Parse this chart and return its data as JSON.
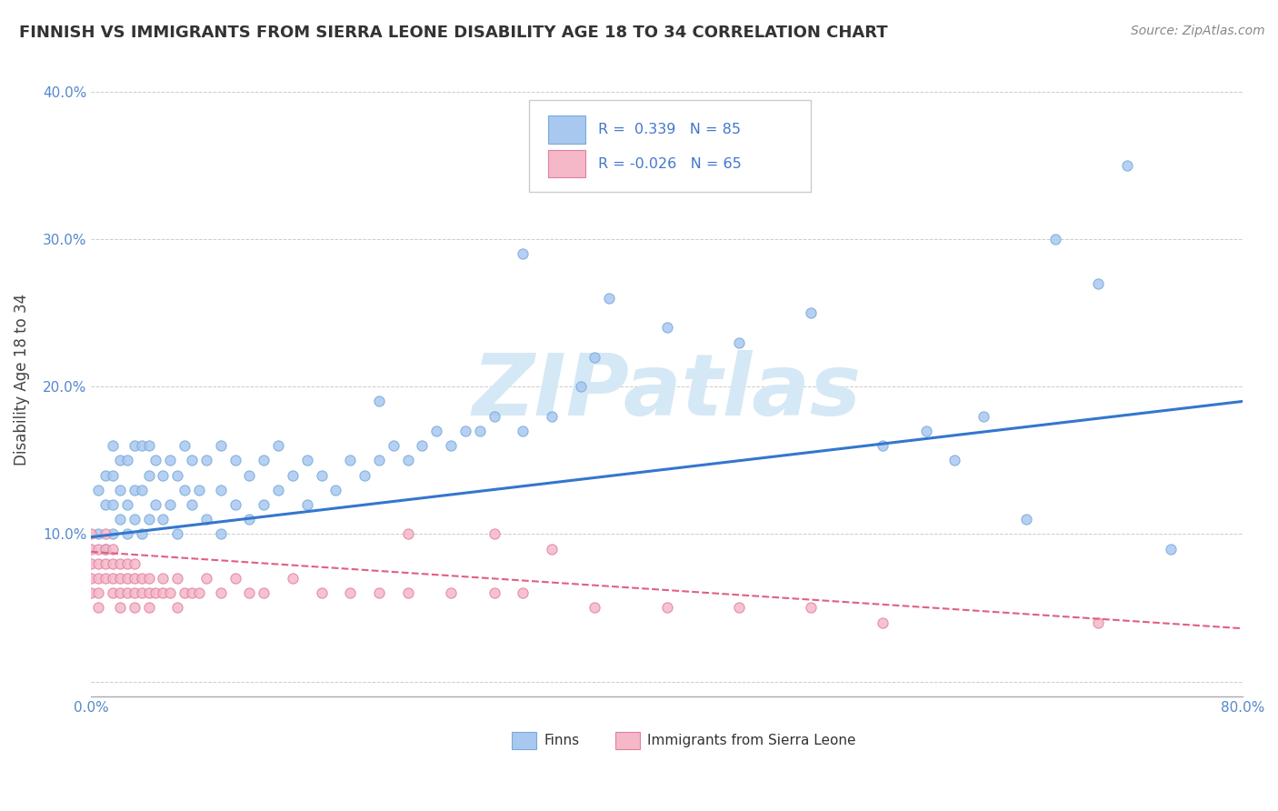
{
  "title": "FINNISH VS IMMIGRANTS FROM SIERRA LEONE DISABILITY AGE 18 TO 34 CORRELATION CHART",
  "source": "Source: ZipAtlas.com",
  "ylabel": "Disability Age 18 to 34",
  "xlim": [
    0.0,
    0.8
  ],
  "ylim": [
    -0.01,
    0.42
  ],
  "finn_color": "#a8c8f0",
  "finn_edge_color": "#7aaad8",
  "sierra_color": "#f5b8c8",
  "sierra_edge_color": "#e080a0",
  "finn_line_color": "#3377cc",
  "sierra_line_color": "#e06080",
  "watermark_color": "#d5e8f5",
  "background_color": "#ffffff",
  "legend_text_color": "#4477cc",
  "finn_scatter_x": [
    0.005,
    0.005,
    0.01,
    0.01,
    0.01,
    0.015,
    0.015,
    0.015,
    0.015,
    0.02,
    0.02,
    0.02,
    0.025,
    0.025,
    0.025,
    0.03,
    0.03,
    0.03,
    0.035,
    0.035,
    0.035,
    0.04,
    0.04,
    0.04,
    0.045,
    0.045,
    0.05,
    0.05,
    0.055,
    0.055,
    0.06,
    0.06,
    0.065,
    0.065,
    0.07,
    0.07,
    0.075,
    0.08,
    0.08,
    0.09,
    0.09,
    0.09,
    0.1,
    0.1,
    0.11,
    0.11,
    0.12,
    0.12,
    0.13,
    0.13,
    0.14,
    0.15,
    0.15,
    0.16,
    0.17,
    0.18,
    0.19,
    0.2,
    0.21,
    0.22,
    0.23,
    0.24,
    0.25,
    0.26,
    0.27,
    0.28,
    0.3,
    0.32,
    0.34,
    0.36,
    0.4,
    0.45,
    0.5,
    0.55,
    0.58,
    0.6,
    0.62,
    0.65,
    0.67,
    0.7,
    0.72,
    0.75,
    0.3,
    0.2,
    0.35
  ],
  "finn_scatter_y": [
    0.1,
    0.13,
    0.09,
    0.12,
    0.14,
    0.1,
    0.12,
    0.14,
    0.16,
    0.11,
    0.13,
    0.15,
    0.1,
    0.12,
    0.15,
    0.11,
    0.13,
    0.16,
    0.1,
    0.13,
    0.16,
    0.11,
    0.14,
    0.16,
    0.12,
    0.15,
    0.11,
    0.14,
    0.12,
    0.15,
    0.1,
    0.14,
    0.13,
    0.16,
    0.12,
    0.15,
    0.13,
    0.11,
    0.15,
    0.1,
    0.13,
    0.16,
    0.12,
    0.15,
    0.11,
    0.14,
    0.12,
    0.15,
    0.13,
    0.16,
    0.14,
    0.12,
    0.15,
    0.14,
    0.13,
    0.15,
    0.14,
    0.15,
    0.16,
    0.15,
    0.16,
    0.17,
    0.16,
    0.17,
    0.17,
    0.18,
    0.17,
    0.18,
    0.2,
    0.26,
    0.24,
    0.23,
    0.25,
    0.16,
    0.17,
    0.15,
    0.18,
    0.11,
    0.3,
    0.27,
    0.35,
    0.09,
    0.29,
    0.19,
    0.22
  ],
  "sierra_scatter_x": [
    0.0,
    0.0,
    0.0,
    0.0,
    0.0,
    0.005,
    0.005,
    0.005,
    0.005,
    0.005,
    0.01,
    0.01,
    0.01,
    0.01,
    0.015,
    0.015,
    0.015,
    0.015,
    0.02,
    0.02,
    0.02,
    0.02,
    0.025,
    0.025,
    0.025,
    0.03,
    0.03,
    0.03,
    0.03,
    0.035,
    0.035,
    0.04,
    0.04,
    0.04,
    0.045,
    0.05,
    0.05,
    0.055,
    0.06,
    0.06,
    0.065,
    0.07,
    0.075,
    0.08,
    0.09,
    0.1,
    0.11,
    0.12,
    0.14,
    0.16,
    0.18,
    0.2,
    0.22,
    0.25,
    0.28,
    0.3,
    0.35,
    0.4,
    0.45,
    0.5,
    0.55,
    0.22,
    0.28,
    0.32,
    0.7
  ],
  "sierra_scatter_y": [
    0.08,
    0.09,
    0.1,
    0.06,
    0.07,
    0.07,
    0.08,
    0.09,
    0.05,
    0.06,
    0.07,
    0.08,
    0.09,
    0.1,
    0.06,
    0.07,
    0.08,
    0.09,
    0.05,
    0.06,
    0.07,
    0.08,
    0.06,
    0.07,
    0.08,
    0.05,
    0.06,
    0.07,
    0.08,
    0.06,
    0.07,
    0.05,
    0.06,
    0.07,
    0.06,
    0.06,
    0.07,
    0.06,
    0.05,
    0.07,
    0.06,
    0.06,
    0.06,
    0.07,
    0.06,
    0.07,
    0.06,
    0.06,
    0.07,
    0.06,
    0.06,
    0.06,
    0.06,
    0.06,
    0.06,
    0.06,
    0.05,
    0.05,
    0.05,
    0.05,
    0.04,
    0.1,
    0.1,
    0.09,
    0.04
  ]
}
